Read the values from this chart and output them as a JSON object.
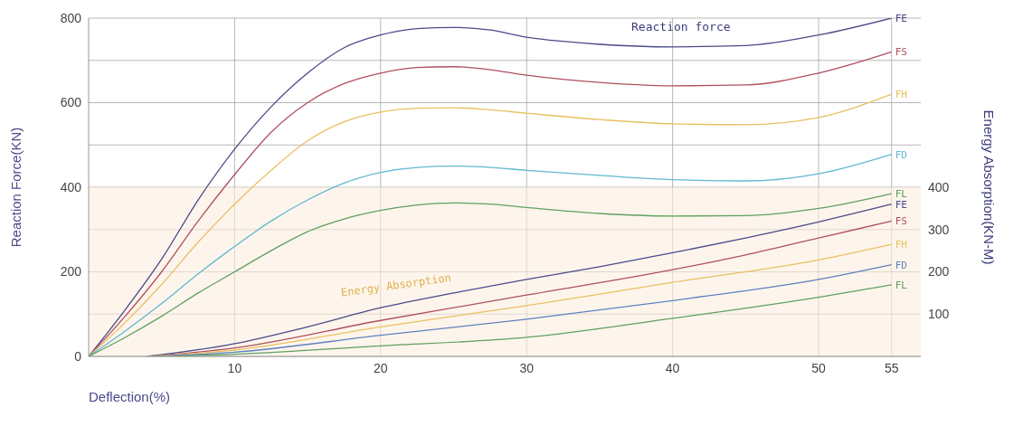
{
  "chart_data": {
    "type": "line",
    "xlabel": "Deflection(%)",
    "ylabel": "Reaction Force(KN)",
    "y2label": "Energy Absorption(KN-M)",
    "xlim": [
      0,
      57
    ],
    "xticks": [
      10,
      20,
      30,
      40,
      50,
      55
    ],
    "ylim": [
      0,
      800
    ],
    "yticks": [
      0,
      {
        "value": 100,
        "label": null
      },
      200,
      {
        "value": 300,
        "label": null
      },
      400,
      {
        "value": 500,
        "label": null
      },
      600,
      {
        "value": 700,
        "label": null
      },
      800
    ],
    "y2lim": [
      0,
      800
    ],
    "y2ticks": [
      100,
      200,
      300,
      400
    ],
    "grid": true,
    "legend": false,
    "line_style": "solid",
    "annotations": [
      "Reaction force"
    ],
    "bands": [
      {
        "axis": "y",
        "from": 0,
        "to": 400,
        "label": "Energy Absorption",
        "color": "#fbeee0"
      }
    ],
    "series": [
      {
        "name": "FE",
        "color": "#4a4a8a",
        "x": [
          0,
          2.5,
          5,
          7.5,
          10,
          12.5,
          15,
          17.5,
          20,
          22.5,
          25,
          27.5,
          30,
          32.5,
          35,
          40,
          45,
          50,
          55
        ],
        "values": [
          0,
          110,
          230,
          370,
          490,
          590,
          670,
          730,
          760,
          775,
          778,
          772,
          755,
          745,
          738,
          732,
          735,
          760,
          800
        ]
      },
      {
        "name": "FS",
        "color": "#b05060",
        "x": [
          0,
          2.5,
          5,
          7.5,
          10,
          12.5,
          15,
          17.5,
          20,
          22.5,
          25,
          27.5,
          30,
          35,
          40,
          45,
          50,
          55
        ],
        "values": [
          0,
          95,
          200,
          320,
          430,
          530,
          600,
          645,
          670,
          683,
          685,
          678,
          665,
          648,
          640,
          642,
          670,
          720
        ]
      },
      {
        "name": "FH",
        "color": "#e8c060",
        "x": [
          0,
          2.5,
          5,
          7.5,
          10,
          12.5,
          15,
          17.5,
          20,
          22.5,
          25,
          27.5,
          30,
          35,
          40,
          45,
          50,
          55
        ],
        "values": [
          0,
          80,
          170,
          270,
          360,
          440,
          510,
          555,
          578,
          587,
          588,
          583,
          575,
          560,
          550,
          548,
          565,
          620
        ]
      },
      {
        "name": "FD",
        "color": "#60b8d0",
        "x": [
          0,
          2.5,
          5,
          7.5,
          10,
          12.5,
          15,
          17.5,
          20,
          22.5,
          25,
          27.5,
          30,
          35,
          40,
          45,
          50,
          55
        ],
        "values": [
          0,
          60,
          125,
          195,
          260,
          320,
          370,
          410,
          435,
          447,
          450,
          447,
          440,
          428,
          418,
          415,
          432,
          478
        ]
      },
      {
        "name": "FL",
        "color": "#60a060",
        "x": [
          0,
          2.5,
          5,
          7.5,
          10,
          12.5,
          15,
          17.5,
          20,
          22.5,
          25,
          27.5,
          30,
          35,
          40,
          45,
          50,
          55
        ],
        "values": [
          0,
          45,
          95,
          150,
          200,
          250,
          295,
          325,
          345,
          358,
          363,
          360,
          352,
          338,
          332,
          333,
          350,
          385
        ]
      },
      {
        "name": "FE",
        "color": "#4a4a8a",
        "x": [
          4,
          10,
          15,
          20,
          25,
          30,
          35,
          40,
          45,
          50,
          55
        ],
        "values": [
          0,
          30,
          70,
          115,
          150,
          182,
          212,
          245,
          280,
          318,
          360
        ]
      },
      {
        "name": "FS",
        "color": "#b05060",
        "x": [
          4,
          10,
          20,
          30,
          40,
          45,
          50,
          55
        ],
        "values": [
          0,
          20,
          85,
          145,
          205,
          240,
          280,
          320
        ]
      },
      {
        "name": "FH",
        "color": "#e8c060",
        "x": [
          4,
          10,
          20,
          30,
          40,
          50,
          55
        ],
        "values": [
          0,
          15,
          70,
          120,
          175,
          228,
          265
        ]
      },
      {
        "name": "FD",
        "color": "#6080c0",
        "x": [
          4,
          10,
          20,
          30,
          40,
          50,
          55
        ],
        "values": [
          0,
          10,
          50,
          88,
          132,
          182,
          217
        ]
      },
      {
        "name": "FL",
        "color": "#60a060",
        "x": [
          4,
          10,
          20,
          30,
          40,
          50,
          55
        ],
        "values": [
          0,
          5,
          25,
          45,
          90,
          140,
          169
        ]
      }
    ]
  }
}
